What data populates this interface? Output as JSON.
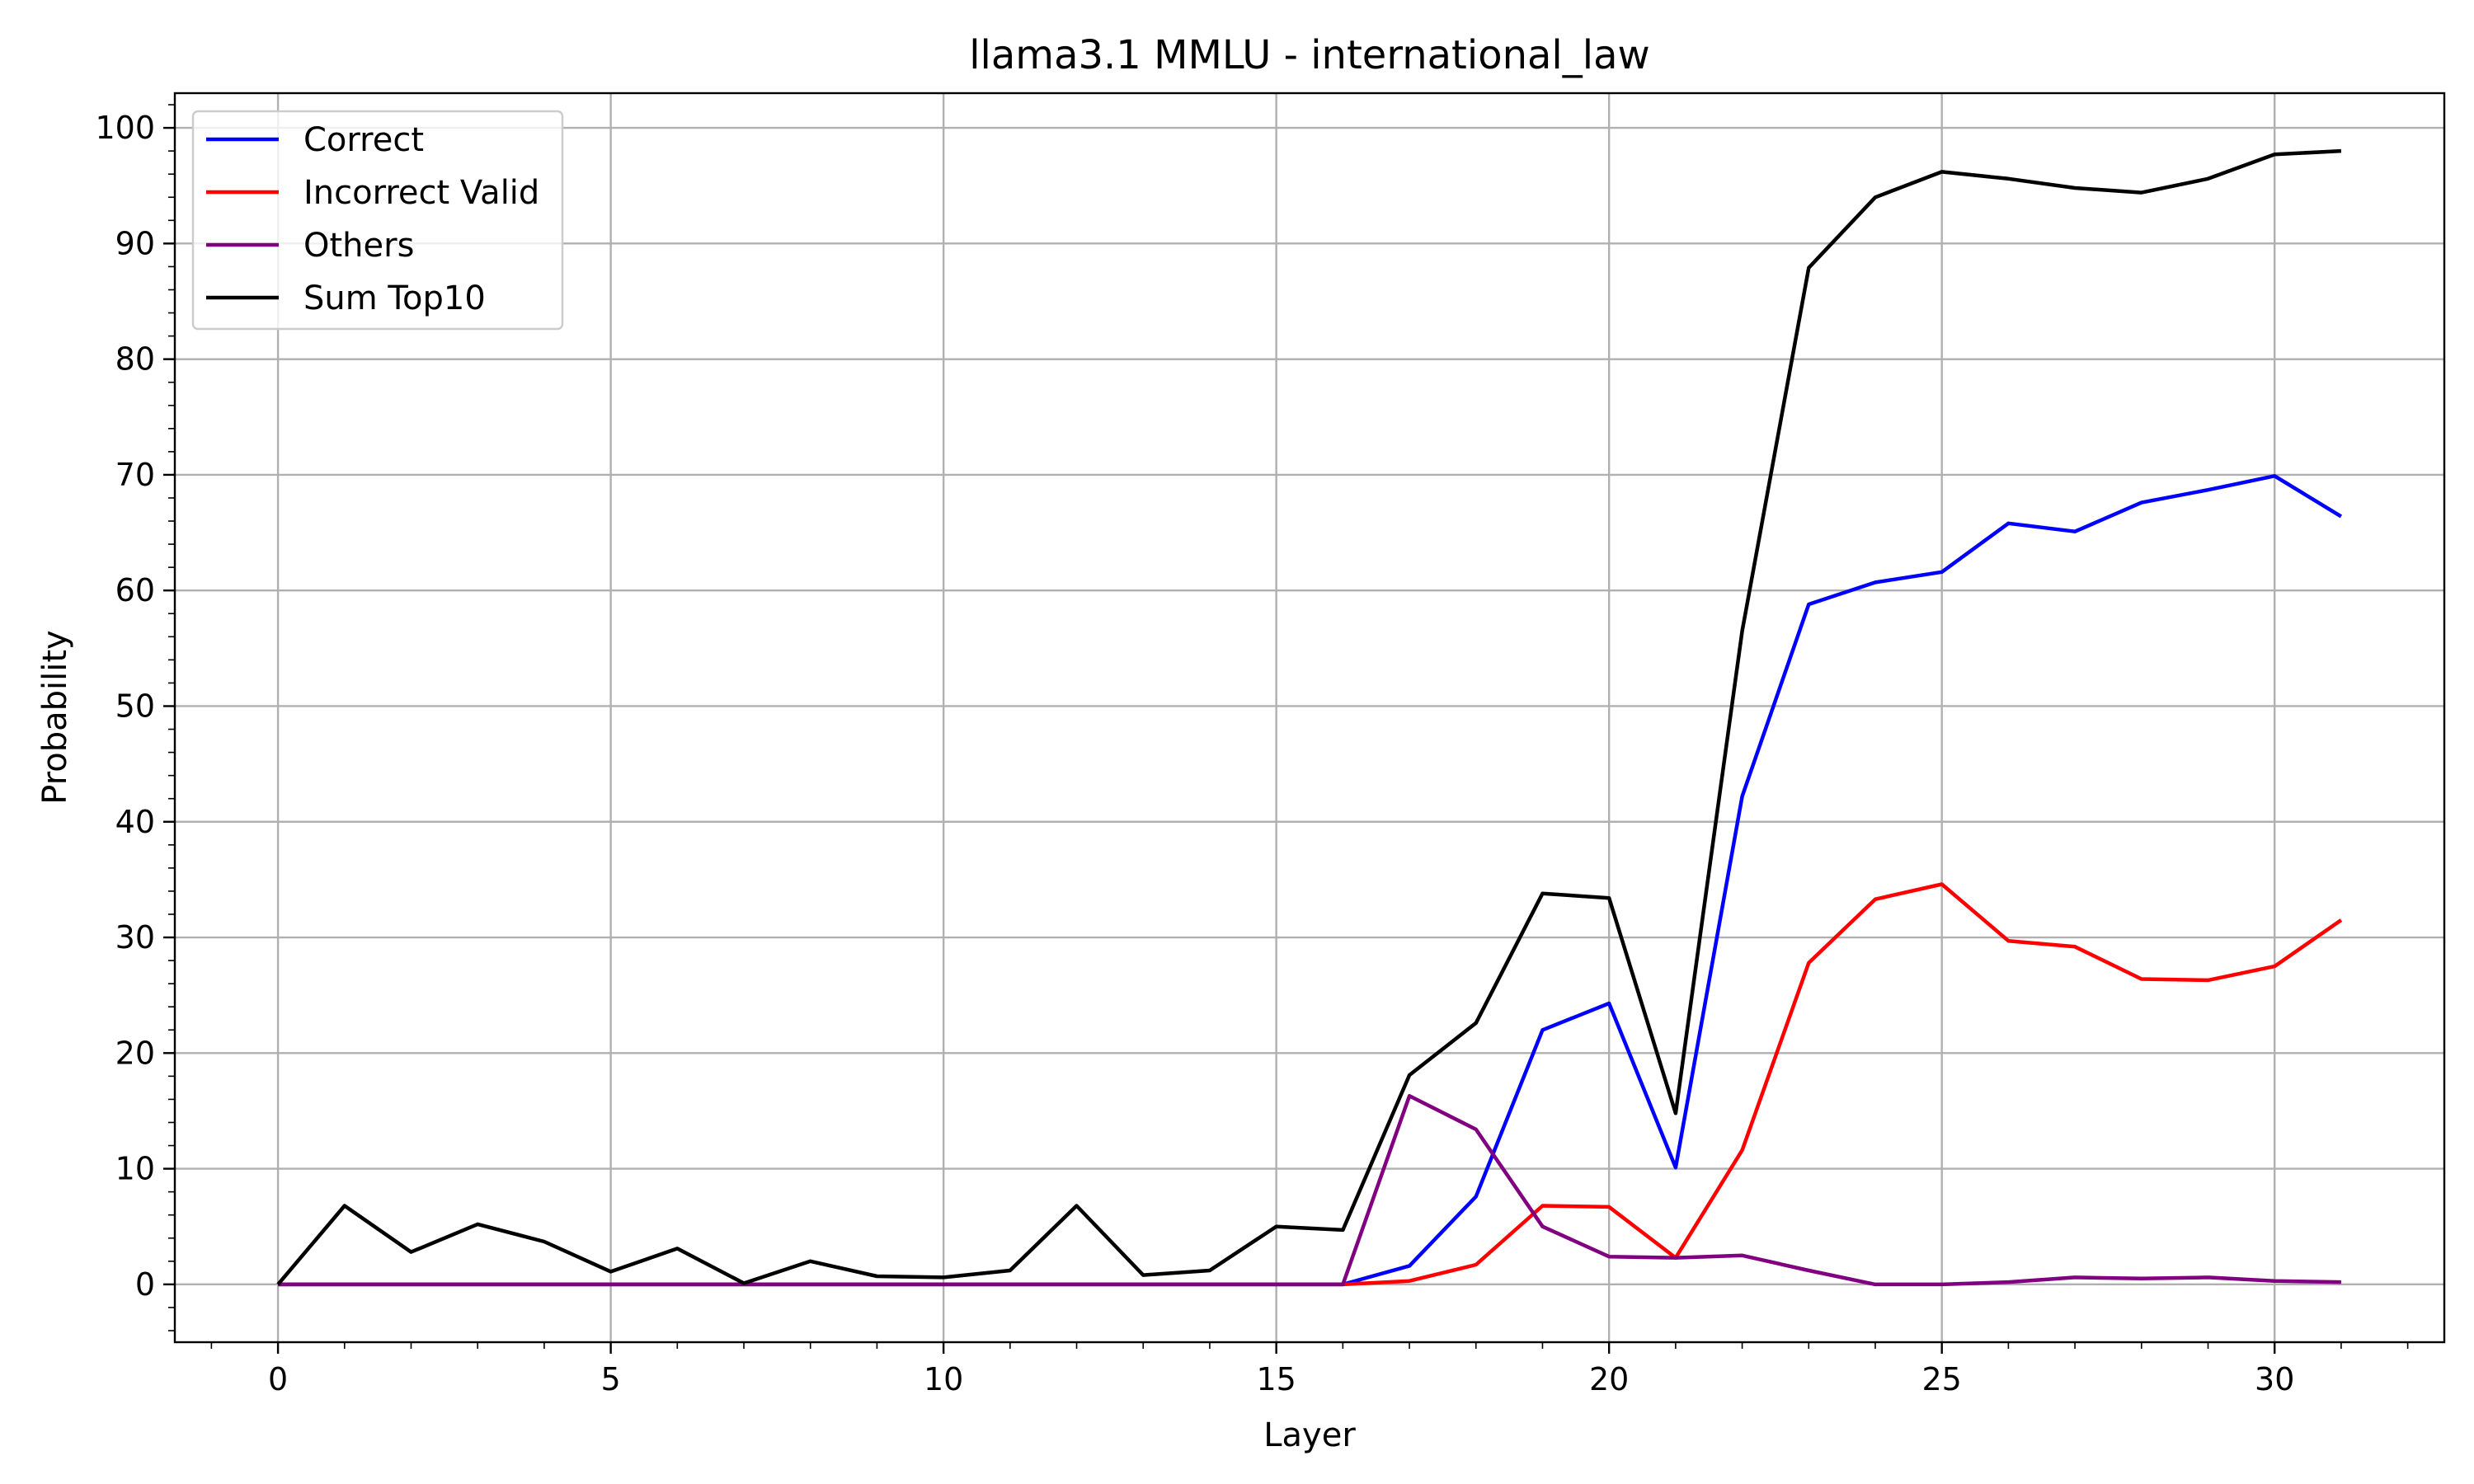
{
  "chart_data": {
    "type": "line",
    "title": "llama3.1 MMLU - international_law",
    "xlabel": "Layer",
    "ylabel": "Probability",
    "xlim": [
      -1.55,
      32.55
    ],
    "ylim": [
      -5,
      103
    ],
    "xticks": [
      0,
      5,
      10,
      15,
      20,
      25,
      30
    ],
    "yticks": [
      0,
      10,
      20,
      30,
      40,
      50,
      60,
      70,
      80,
      90,
      100
    ],
    "grid": true,
    "legend_position": "upper left",
    "x": [
      0,
      1,
      2,
      3,
      4,
      5,
      6,
      7,
      8,
      9,
      10,
      11,
      12,
      13,
      14,
      15,
      16,
      17,
      18,
      19,
      20,
      21,
      22,
      23,
      24,
      25,
      26,
      27,
      28,
      29,
      30,
      31
    ],
    "series": [
      {
        "name": "Correct",
        "color": "#0000ff",
        "values": [
          0,
          0,
          0,
          0,
          0,
          0,
          0,
          0,
          0,
          0,
          0,
          0,
          0,
          0,
          0,
          0,
          0,
          1.6,
          7.6,
          22,
          24.3,
          10.1,
          42.2,
          58.8,
          60.7,
          61.6,
          65.8,
          65.1,
          67.6,
          68.7,
          69.9,
          66.4
        ]
      },
      {
        "name": "Incorrect Valid",
        "color": "#ff0000",
        "values": [
          0,
          0,
          0,
          0,
          0,
          0,
          0,
          0,
          0,
          0,
          0,
          0,
          0,
          0,
          0,
          0,
          0,
          0.3,
          1.7,
          6.8,
          6.7,
          2.3,
          11.6,
          27.8,
          33.3,
          34.6,
          29.7,
          29.2,
          26.4,
          26.3,
          27.5,
          31.5
        ]
      },
      {
        "name": "Others",
        "color": "#800080",
        "values": [
          0,
          0,
          0,
          0,
          0,
          0,
          0,
          0,
          0,
          0,
          0,
          0,
          0,
          0,
          0,
          0,
          0,
          16.3,
          13.4,
          5,
          2.4,
          2.3,
          2.5,
          1.2,
          0,
          0,
          0.2,
          0.6,
          0.5,
          0.6,
          0.3,
          0.2
        ]
      },
      {
        "name": "Sum Top10",
        "color": "#000000",
        "values": [
          0,
          6.8,
          2.8,
          5.2,
          3.7,
          1.1,
          3.1,
          0.1,
          2,
          0.7,
          0.6,
          1.2,
          6.8,
          0.8,
          1.2,
          5,
          4.7,
          18.1,
          22.6,
          33.8,
          33.4,
          14.8,
          56.5,
          87.9,
          94,
          96.2,
          95.6,
          94.8,
          94.4,
          95.6,
          97.7,
          98
        ]
      }
    ]
  }
}
